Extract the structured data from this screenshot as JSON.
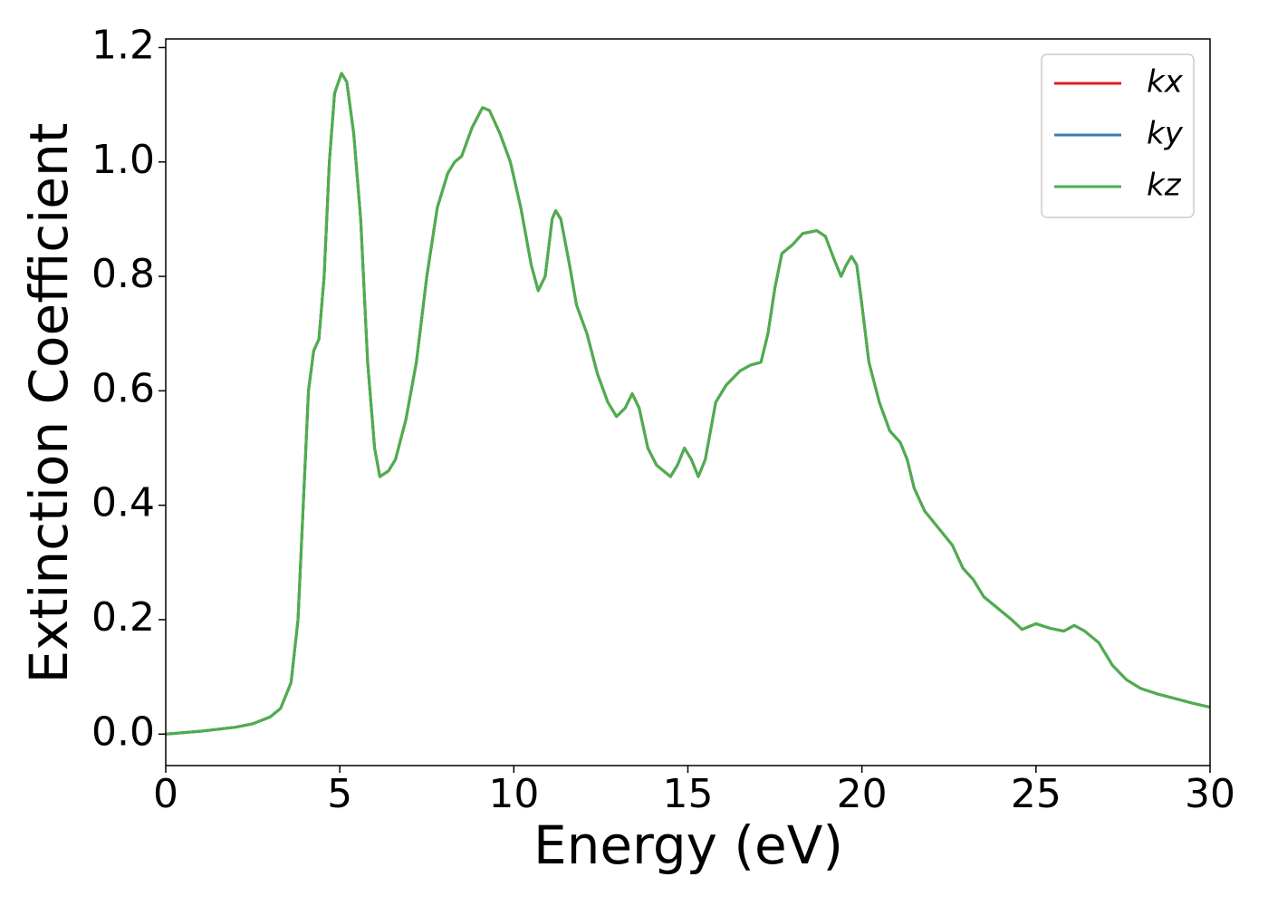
{
  "chart_data": {
    "type": "line",
    "xlabel": "Energy (eV)",
    "ylabel": "Extinction Coefficient",
    "xlim": [
      0,
      30
    ],
    "ylim": [
      -0.055,
      1.215
    ],
    "xticks": [
      0,
      5,
      10,
      15,
      20,
      25,
      30
    ],
    "yticks": [
      {
        "value": 0,
        "label": "0.0"
      },
      0.2,
      0.4,
      0.6,
      0.8,
      {
        "value": 1,
        "label": "1.0"
      },
      1.2
    ],
    "legend": "upper right",
    "x": [
      0,
      1,
      2,
      2.5,
      3,
      3.3,
      3.6,
      3.8,
      3.95,
      4.1,
      4.25,
      4.4,
      4.55,
      4.7,
      4.85,
      5.05,
      5.2,
      5.4,
      5.6,
      5.8,
      6.0,
      6.15,
      6.4,
      6.6,
      6.9,
      7.2,
      7.5,
      7.8,
      8.1,
      8.3,
      8.5,
      8.8,
      9.1,
      9.3,
      9.6,
      9.9,
      10.2,
      10.5,
      10.7,
      10.9,
      11.1,
      11.2,
      11.35,
      11.6,
      11.8,
      12.1,
      12.4,
      12.7,
      12.95,
      13.2,
      13.4,
      13.6,
      13.85,
      14.1,
      14.5,
      14.7,
      14.9,
      15.1,
      15.3,
      15.5,
      15.8,
      16.1,
      16.5,
      16.8,
      17.1,
      17.3,
      17.5,
      17.7,
      18.0,
      18.3,
      18.7,
      18.95,
      19.2,
      19.4,
      19.55,
      19.7,
      19.85,
      20.0,
      20.2,
      20.5,
      20.8,
      21.1,
      21.3,
      21.5,
      21.8,
      22.2,
      22.6,
      22.9,
      23.2,
      23.5,
      23.9,
      24.3,
      24.6,
      25.0,
      25.4,
      25.8,
      26.1,
      26.4,
      26.8,
      27.2,
      27.6,
      28.0,
      28.5,
      29.0,
      29.5,
      30.0
    ],
    "series": [
      {
        "name": "kx",
        "color": "#e41a1c",
        "values": [
          0,
          0.005,
          0.012,
          0.018,
          0.03,
          0.045,
          0.09,
          0.2,
          0.4,
          0.6,
          0.67,
          0.69,
          0.8,
          1.0,
          1.12,
          1.155,
          1.14,
          1.05,
          0.9,
          0.65,
          0.5,
          0.45,
          0.46,
          0.48,
          0.55,
          0.65,
          0.8,
          0.92,
          0.98,
          1.0,
          1.01,
          1.06,
          1.095,
          1.09,
          1.05,
          1.0,
          0.92,
          0.82,
          0.775,
          0.8,
          0.9,
          0.915,
          0.9,
          0.82,
          0.75,
          0.7,
          0.63,
          0.58,
          0.555,
          0.57,
          0.595,
          0.57,
          0.5,
          0.47,
          0.45,
          0.47,
          0.5,
          0.48,
          0.45,
          0.48,
          0.58,
          0.61,
          0.635,
          0.645,
          0.65,
          0.7,
          0.78,
          0.84,
          0.855,
          0.875,
          0.88,
          0.87,
          0.83,
          0.8,
          0.82,
          0.835,
          0.82,
          0.75,
          0.65,
          0.58,
          0.53,
          0.51,
          0.48,
          0.43,
          0.39,
          0.36,
          0.33,
          0.29,
          0.27,
          0.24,
          0.22,
          0.2,
          0.183,
          0.193,
          0.185,
          0.18,
          0.19,
          0.18,
          0.16,
          0.12,
          0.095,
          0.08,
          0.07,
          0.062,
          0.054,
          0.047
        ]
      },
      {
        "name": "ky",
        "color": "#377eb8",
        "values": [
          0,
          0.005,
          0.012,
          0.018,
          0.03,
          0.045,
          0.09,
          0.2,
          0.4,
          0.6,
          0.67,
          0.69,
          0.8,
          1.0,
          1.12,
          1.155,
          1.14,
          1.05,
          0.9,
          0.65,
          0.5,
          0.45,
          0.46,
          0.48,
          0.55,
          0.65,
          0.8,
          0.92,
          0.98,
          1.0,
          1.01,
          1.06,
          1.095,
          1.09,
          1.05,
          1.0,
          0.92,
          0.82,
          0.775,
          0.8,
          0.9,
          0.915,
          0.9,
          0.82,
          0.75,
          0.7,
          0.63,
          0.58,
          0.555,
          0.57,
          0.595,
          0.57,
          0.5,
          0.47,
          0.45,
          0.47,
          0.5,
          0.48,
          0.45,
          0.48,
          0.58,
          0.61,
          0.635,
          0.645,
          0.65,
          0.7,
          0.78,
          0.84,
          0.855,
          0.875,
          0.88,
          0.87,
          0.83,
          0.8,
          0.82,
          0.835,
          0.82,
          0.75,
          0.65,
          0.58,
          0.53,
          0.51,
          0.48,
          0.43,
          0.39,
          0.36,
          0.33,
          0.29,
          0.27,
          0.24,
          0.22,
          0.2,
          0.183,
          0.193,
          0.185,
          0.18,
          0.19,
          0.18,
          0.16,
          0.12,
          0.095,
          0.08,
          0.07,
          0.062,
          0.054,
          0.047
        ]
      },
      {
        "name": "kz",
        "color": "#4daf4a",
        "values": [
          0,
          0.005,
          0.012,
          0.018,
          0.03,
          0.045,
          0.09,
          0.2,
          0.4,
          0.6,
          0.67,
          0.69,
          0.8,
          1.0,
          1.12,
          1.155,
          1.14,
          1.05,
          0.9,
          0.65,
          0.5,
          0.45,
          0.46,
          0.48,
          0.55,
          0.65,
          0.8,
          0.92,
          0.98,
          1.0,
          1.01,
          1.06,
          1.095,
          1.09,
          1.05,
          1.0,
          0.92,
          0.82,
          0.775,
          0.8,
          0.9,
          0.915,
          0.9,
          0.82,
          0.75,
          0.7,
          0.63,
          0.58,
          0.555,
          0.57,
          0.595,
          0.57,
          0.5,
          0.47,
          0.45,
          0.47,
          0.5,
          0.48,
          0.45,
          0.48,
          0.58,
          0.61,
          0.635,
          0.645,
          0.65,
          0.7,
          0.78,
          0.84,
          0.855,
          0.875,
          0.88,
          0.87,
          0.83,
          0.8,
          0.82,
          0.835,
          0.82,
          0.75,
          0.65,
          0.58,
          0.53,
          0.51,
          0.48,
          0.43,
          0.39,
          0.36,
          0.33,
          0.29,
          0.27,
          0.24,
          0.22,
          0.2,
          0.183,
          0.193,
          0.185,
          0.18,
          0.19,
          0.18,
          0.16,
          0.12,
          0.095,
          0.08,
          0.07,
          0.062,
          0.054,
          0.047
        ]
      }
    ]
  }
}
